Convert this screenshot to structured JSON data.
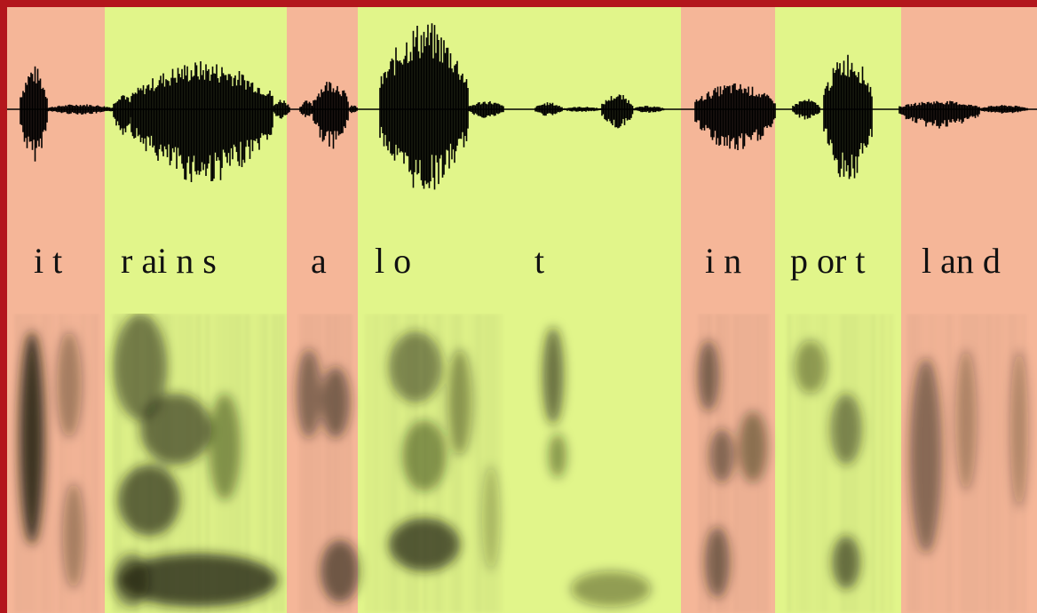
{
  "colors": {
    "frame": "#b3161c",
    "salmon": "#f5b698",
    "lime": "#e1f58a",
    "waveform": "#000000",
    "spectrogram_dark": "#1d1e0e"
  },
  "labels": {
    "it": "i t",
    "rains": "r ai n s",
    "a": "a",
    "lo": "l o",
    "t": "t",
    "in": "i n",
    "port": "p or t",
    "land": "l an d"
  }
}
